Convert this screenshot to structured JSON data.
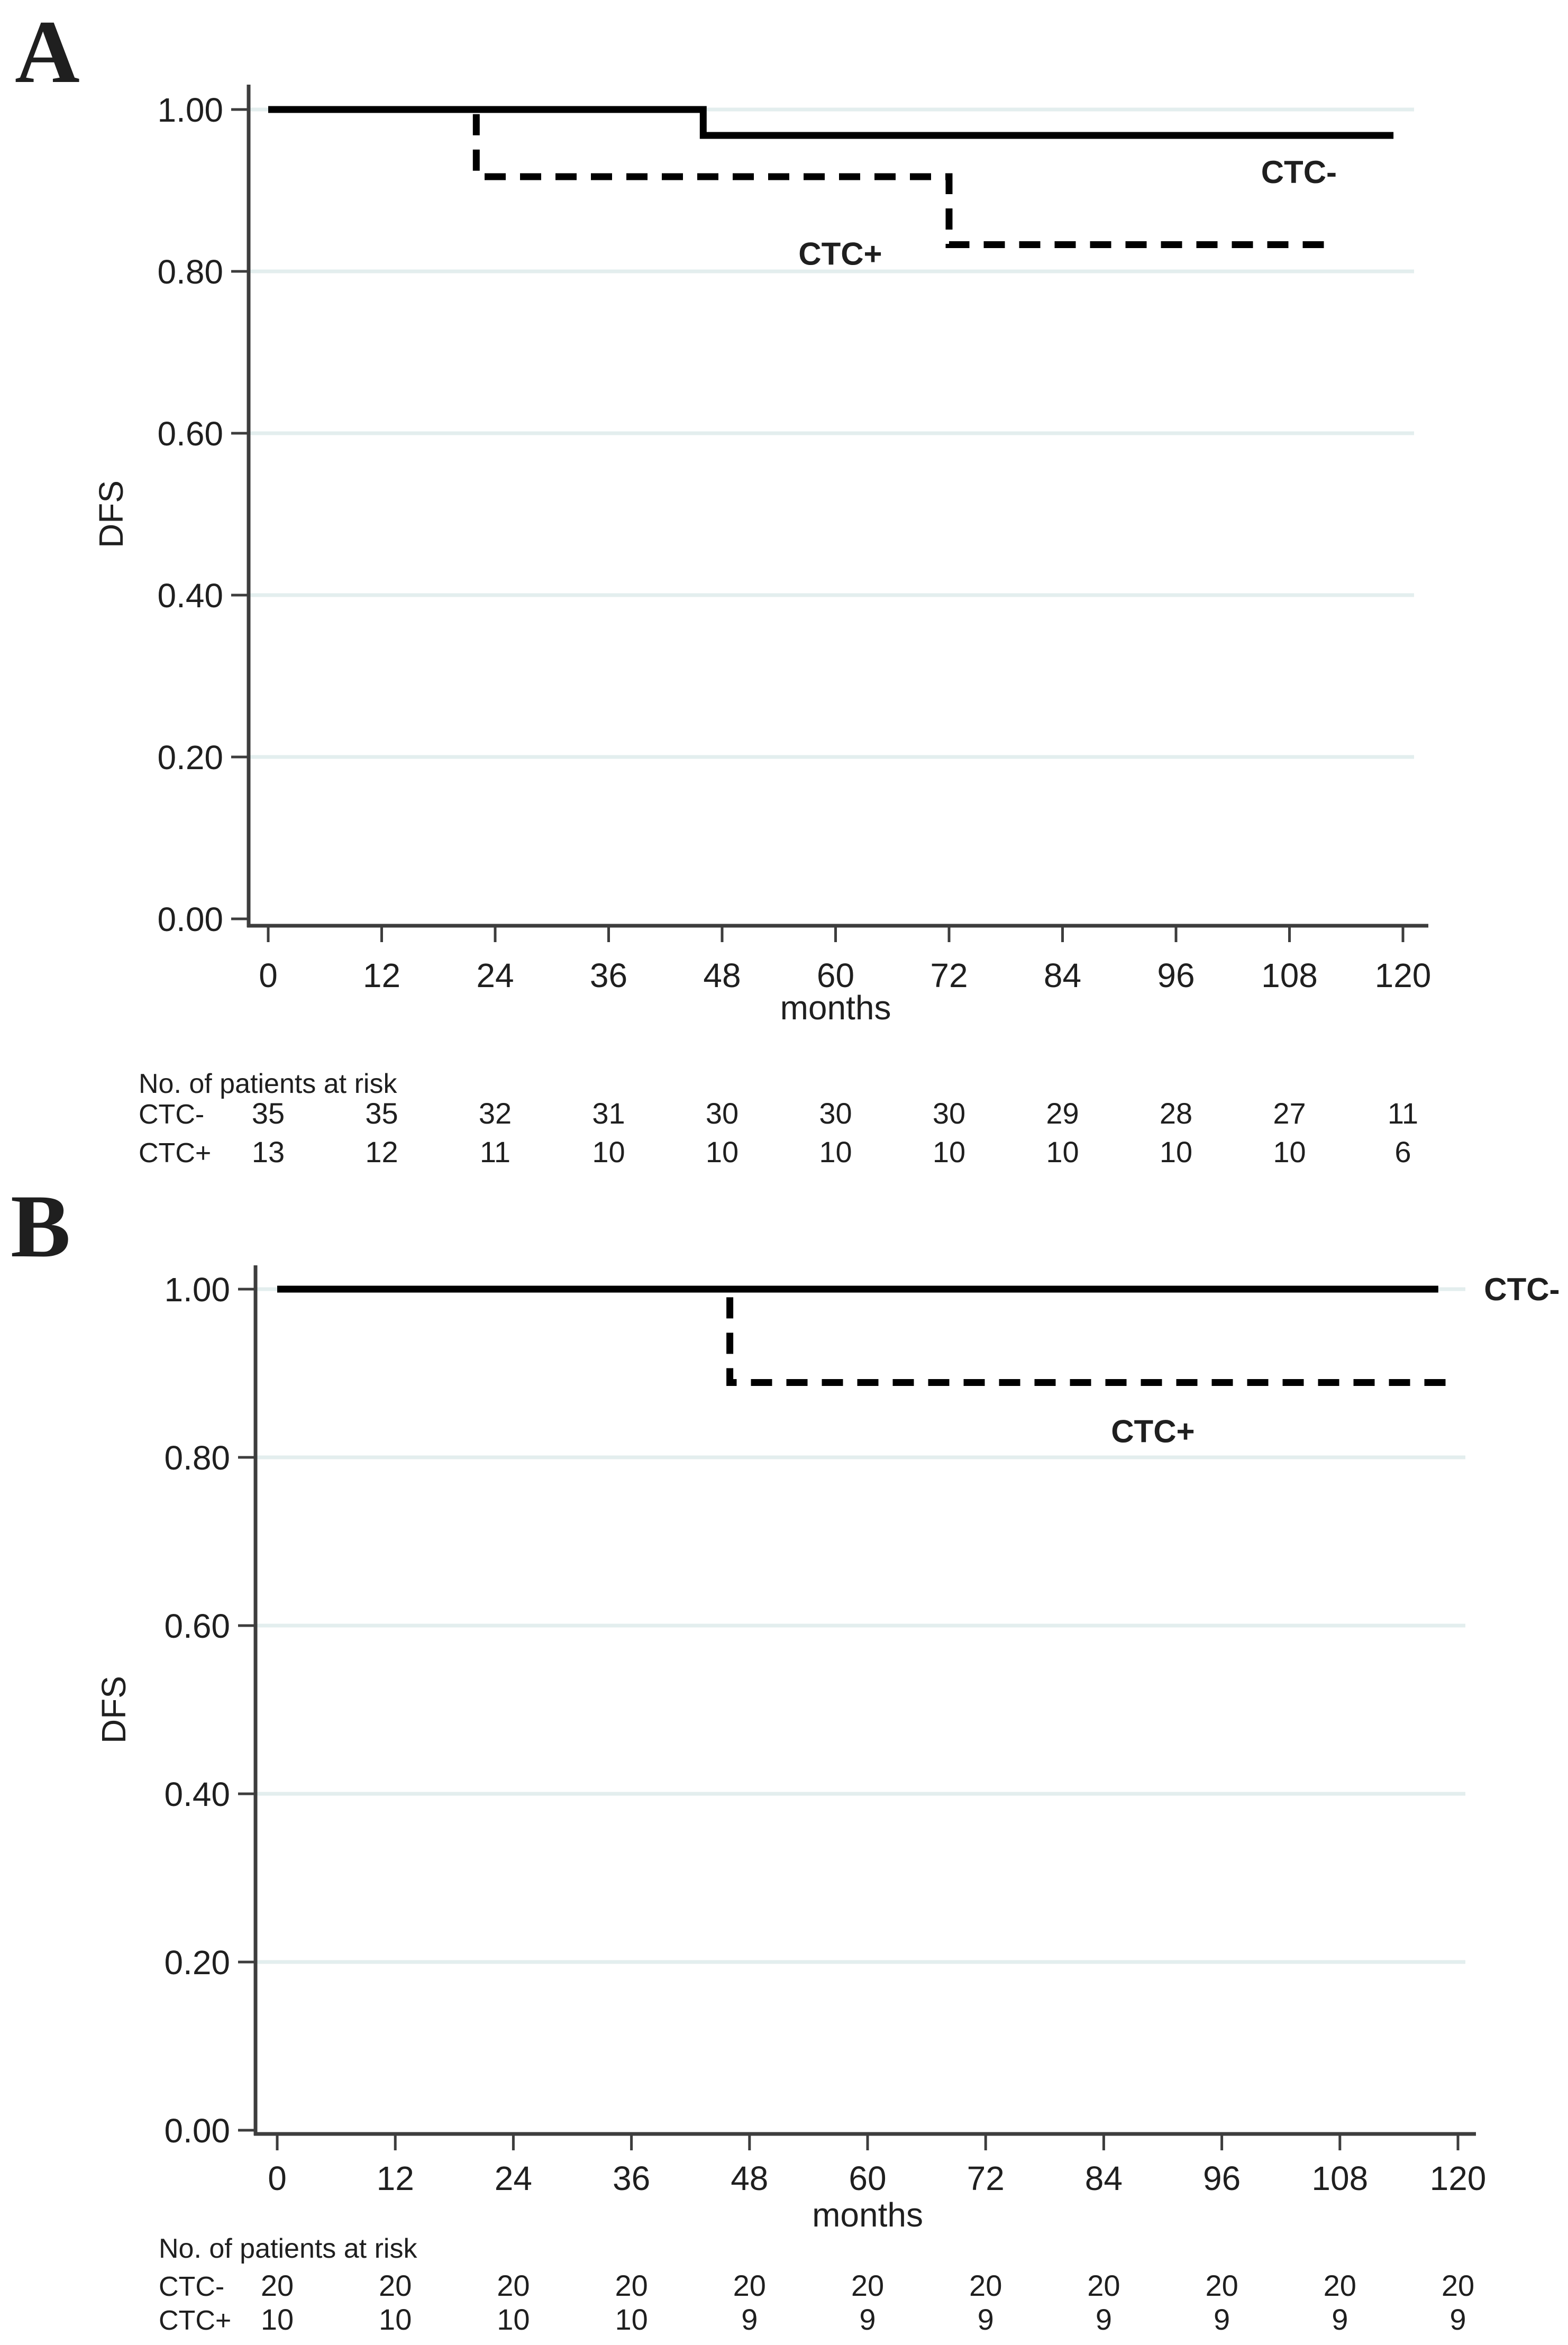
{
  "figure": {
    "background": "#ffffff",
    "colors": {
      "curve": "#000000",
      "axis": "#3d3d3d",
      "grid": "#e3eeee",
      "text": "#1f1f1f"
    }
  },
  "chart_data": [
    {
      "panel_label": "A",
      "type": "line",
      "subtype": "kaplan-meier-step",
      "title": "",
      "xlabel": "months",
      "ylabel": "DFS",
      "xlim": [
        0,
        120
      ],
      "ylim": [
        0.0,
        1.0
      ],
      "grid": "horizontal",
      "legend_position": "inline-annotations",
      "xticks": [
        0,
        12,
        24,
        36,
        48,
        60,
        72,
        84,
        96,
        108,
        120
      ],
      "yticks": [
        {
          "value": 1.0,
          "label": "1.00"
        },
        {
          "value": 0.8,
          "label": "0.80"
        },
        {
          "value": 0.6,
          "label": "0.60"
        },
        {
          "value": 0.4,
          "label": "0.40"
        },
        {
          "value": 0.2,
          "label": "0.20"
        },
        {
          "value": 0.0,
          "label": "0.00"
        }
      ],
      "series": [
        {
          "name": "CTC-",
          "style": "solid",
          "points": [
            [
              0,
              1.0
            ],
            [
              46,
              1.0
            ],
            [
              46,
              0.968
            ],
            [
              119,
              0.968
            ]
          ],
          "label_pos": {
            "x": 109,
            "y": 0.923
          }
        },
        {
          "name": "CTC+",
          "style": "dashed",
          "points": [
            [
              0,
              1.0
            ],
            [
              22,
              1.0
            ],
            [
              22,
              0.917
            ],
            [
              72,
              0.917
            ],
            [
              72,
              0.833
            ],
            [
              112,
              0.833
            ]
          ],
          "label_pos": {
            "x": 60.5,
            "y": 0.822
          }
        }
      ],
      "risk_table": {
        "title": "No. of patients at risk",
        "rows": [
          {
            "label": "CTC-",
            "values": [
              35,
              35,
              32,
              31,
              30,
              30,
              30,
              29,
              28,
              27,
              11
            ]
          },
          {
            "label": "CTC+",
            "values": [
              13,
              12,
              11,
              10,
              10,
              10,
              10,
              10,
              10,
              10,
              6
            ]
          }
        ]
      }
    },
    {
      "panel_label": "B",
      "type": "line",
      "subtype": "kaplan-meier-step",
      "title": "",
      "xlabel": "months",
      "ylabel": "DFS",
      "xlim": [
        0,
        120
      ],
      "ylim": [
        0.0,
        1.0
      ],
      "grid": "horizontal",
      "legend_position": "inline-annotations",
      "xticks": [
        0,
        12,
        24,
        36,
        48,
        60,
        72,
        84,
        96,
        108,
        120
      ],
      "yticks": [
        {
          "value": 1.0,
          "label": "1.00"
        },
        {
          "value": 0.8,
          "label": "0.80"
        },
        {
          "value": 0.6,
          "label": "0.60"
        },
        {
          "value": 0.4,
          "label": "0.40"
        },
        {
          "value": 0.2,
          "label": "0.20"
        },
        {
          "value": 0.0,
          "label": "0.00"
        }
      ],
      "series": [
        {
          "name": "CTC-",
          "style": "solid",
          "points": [
            [
              0,
              1.0
            ],
            [
              118,
              1.0
            ]
          ],
          "label_pos": {
            "x": 126.5,
            "y": 1.0
          }
        },
        {
          "name": "CTC+",
          "style": "dashed",
          "points": [
            [
              0,
              1.0
            ],
            [
              46,
              1.0
            ],
            [
              46,
              0.889
            ],
            [
              120,
              0.889
            ]
          ],
          "label_pos": {
            "x": 89,
            "y": 0.831
          }
        }
      ],
      "risk_table": {
        "title": "No. of patients at risk",
        "rows": [
          {
            "label": "CTC-",
            "values": [
              20,
              20,
              20,
              20,
              20,
              20,
              20,
              20,
              20,
              20,
              20
            ]
          },
          {
            "label": "CTC+",
            "values": [
              10,
              10,
              10,
              10,
              9,
              9,
              9,
              9,
              9,
              9,
              9
            ]
          }
        ]
      }
    }
  ]
}
